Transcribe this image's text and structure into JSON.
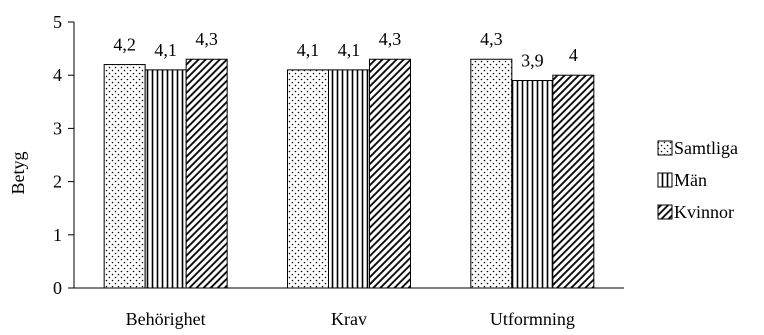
{
  "chart_data": {
    "type": "bar",
    "categories": [
      "Behörighet",
      "Krav",
      "Utformning"
    ],
    "series": [
      {
        "name": "Samtliga",
        "values": [
          4.2,
          4.1,
          4.3
        ],
        "labels": [
          "4,2",
          "4,1",
          "4,3"
        ],
        "pattern": "dots"
      },
      {
        "name": "Män",
        "values": [
          4.1,
          4.1,
          3.9
        ],
        "labels": [
          "4,1",
          "4,1",
          "3,9"
        ],
        "pattern": "vertical-lines"
      },
      {
        "name": "Kvinnor",
        "values": [
          4.3,
          4.3,
          4.0
        ],
        "labels": [
          "4,3",
          "4,3",
          "4"
        ],
        "pattern": "diagonal-lines"
      }
    ],
    "ylabel": "Betyg",
    "ylim": [
      0,
      5
    ],
    "yticks": [
      0,
      1,
      2,
      3,
      4,
      5
    ],
    "legend_position": "right",
    "grid": false,
    "bar_fill": "#ffffff",
    "stroke": "#000000"
  }
}
